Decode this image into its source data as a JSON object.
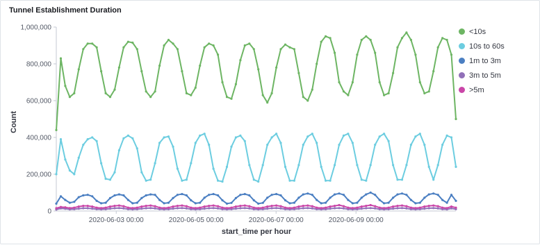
{
  "panel": {
    "title": "Tunnel Establishment Duration"
  },
  "chart_data": {
    "type": "line",
    "title": "Tunnel Establishment Duration",
    "xlabel": "start_time per hour",
    "ylabel": "Count",
    "x_start": "2020-06-01T12:00",
    "x_end": "2020-06-11T12:00",
    "x_tick_labels": [
      "2020-06-03 00:00",
      "2020-06-05 00:00",
      "2020-06-07 00:00",
      "2020-06-09 00:00"
    ],
    "y_tick_labels": [
      "0",
      "200,000",
      "400,000",
      "600,000",
      "800,000",
      "1,000,000"
    ],
    "ylim": [
      0,
      1000000
    ],
    "legend_position": "right",
    "grid": false,
    "series": [
      {
        "name": "<10s",
        "color": "#6db563",
        "values": [
          440000,
          830000,
          680000,
          620000,
          640000,
          770000,
          880000,
          910000,
          910000,
          890000,
          760000,
          640000,
          620000,
          660000,
          780000,
          890000,
          920000,
          915000,
          880000,
          760000,
          650000,
          620000,
          650000,
          790000,
          900000,
          930000,
          910000,
          880000,
          760000,
          640000,
          630000,
          670000,
          790000,
          890000,
          910000,
          900000,
          850000,
          700000,
          620000,
          610000,
          690000,
          820000,
          900000,
          910000,
          880000,
          770000,
          630000,
          590000,
          640000,
          780000,
          880000,
          905000,
          890000,
          880000,
          750000,
          620000,
          600000,
          660000,
          800000,
          920000,
          950000,
          940000,
          860000,
          700000,
          650000,
          630000,
          700000,
          850000,
          930000,
          950000,
          930000,
          860000,
          700000,
          630000,
          640000,
          750000,
          890000,
          940000,
          970000,
          930000,
          850000,
          700000,
          640000,
          650000,
          760000,
          890000,
          940000,
          930000,
          850000,
          500000
        ]
      },
      {
        "name": "10s to 60s",
        "color": "#6ccde0",
        "values": [
          200000,
          390000,
          280000,
          220000,
          200000,
          290000,
          360000,
          390000,
          400000,
          380000,
          260000,
          175000,
          170000,
          210000,
          330000,
          395000,
          410000,
          395000,
          340000,
          210000,
          165000,
          170000,
          260000,
          370000,
          400000,
          405000,
          350000,
          230000,
          165000,
          170000,
          260000,
          370000,
          410000,
          420000,
          360000,
          230000,
          165000,
          160000,
          240000,
          350000,
          400000,
          410000,
          380000,
          250000,
          170000,
          160000,
          250000,
          360000,
          400000,
          420000,
          370000,
          240000,
          165000,
          165000,
          250000,
          360000,
          405000,
          420000,
          370000,
          240000,
          165000,
          165000,
          250000,
          360000,
          410000,
          420000,
          370000,
          250000,
          170000,
          165000,
          250000,
          360000,
          405000,
          420000,
          380000,
          250000,
          170000,
          170000,
          250000,
          360000,
          405000,
          420000,
          360000,
          240000,
          170000,
          250000,
          360000,
          410000,
          400000,
          240000
        ]
      },
      {
        "name": "1m to 3m",
        "color": "#4b7fc2",
        "values": [
          40000,
          80000,
          60000,
          45000,
          50000,
          75000,
          85000,
          88000,
          80000,
          55000,
          42000,
          45000,
          70000,
          85000,
          90000,
          85000,
          60000,
          42000,
          45000,
          70000,
          85000,
          90000,
          88000,
          60000,
          42000,
          45000,
          70000,
          88000,
          92000,
          85000,
          58000,
          42000,
          45000,
          72000,
          88000,
          92000,
          85000,
          58000,
          40000,
          44000,
          70000,
          88000,
          92000,
          85000,
          58000,
          40000,
          44000,
          72000,
          88000,
          92000,
          85000,
          58000,
          42000,
          45000,
          72000,
          90000,
          95000,
          88000,
          60000,
          42000,
          45000,
          72000,
          90000,
          95000,
          88000,
          60000,
          42000,
          45000,
          72000,
          90000,
          100000,
          88000,
          60000,
          42000,
          45000,
          72000,
          90000,
          95000,
          88000,
          60000,
          42000,
          45000,
          72000,
          90000,
          95000,
          88000,
          60000,
          45000,
          88000,
          55000
        ]
      },
      {
        "name": "3m to 5m",
        "color": "#9170b8",
        "values": [
          8000,
          14000,
          12000,
          9000,
          10000,
          13000,
          15000,
          15000,
          13000,
          10000,
          9000,
          10000,
          13000,
          15000,
          16000,
          14000,
          10000,
          9000,
          10000,
          13000,
          15000,
          16000,
          14000,
          10000,
          9000,
          10000,
          13000,
          15000,
          16000,
          14000,
          10000,
          9000,
          10000,
          13000,
          15000,
          16000,
          14000,
          10000,
          9000,
          10000,
          13000,
          15000,
          16000,
          14000,
          10000,
          9000,
          10000,
          13000,
          15000,
          16000,
          14000,
          10000,
          9000,
          10000,
          13000,
          15000,
          16000,
          14000,
          10000,
          9000,
          10000,
          13000,
          15000,
          16000,
          14000,
          10000,
          9000,
          10000,
          13000,
          15000,
          16000,
          14000,
          10000,
          9000,
          10000,
          13000,
          15000,
          16000,
          14000,
          10000,
          9000,
          10000,
          13000,
          15000,
          16000,
          14000,
          10000,
          9000,
          14000,
          10000
        ]
      },
      {
        "name": ">5m",
        "color": "#ca46a8",
        "values": [
          15000,
          22000,
          20000,
          16000,
          18000,
          24000,
          28000,
          28000,
          24000,
          18000,
          16000,
          18000,
          24000,
          28000,
          30000,
          26000,
          18000,
          16000,
          18000,
          24000,
          28000,
          30000,
          26000,
          18000,
          16000,
          18000,
          24000,
          28000,
          30000,
          26000,
          18000,
          16000,
          18000,
          24000,
          28000,
          30000,
          26000,
          18000,
          16000,
          18000,
          24000,
          28000,
          30000,
          26000,
          18000,
          16000,
          18000,
          24000,
          28000,
          30000,
          26000,
          18000,
          16000,
          18000,
          24000,
          28000,
          30000,
          26000,
          18000,
          16000,
          18000,
          24000,
          28000,
          32000,
          26000,
          18000,
          16000,
          18000,
          24000,
          28000,
          32000,
          26000,
          18000,
          16000,
          18000,
          24000,
          28000,
          30000,
          26000,
          18000,
          16000,
          18000,
          24000,
          28000,
          30000,
          26000,
          18000,
          16000,
          24000,
          18000
        ]
      }
    ]
  }
}
